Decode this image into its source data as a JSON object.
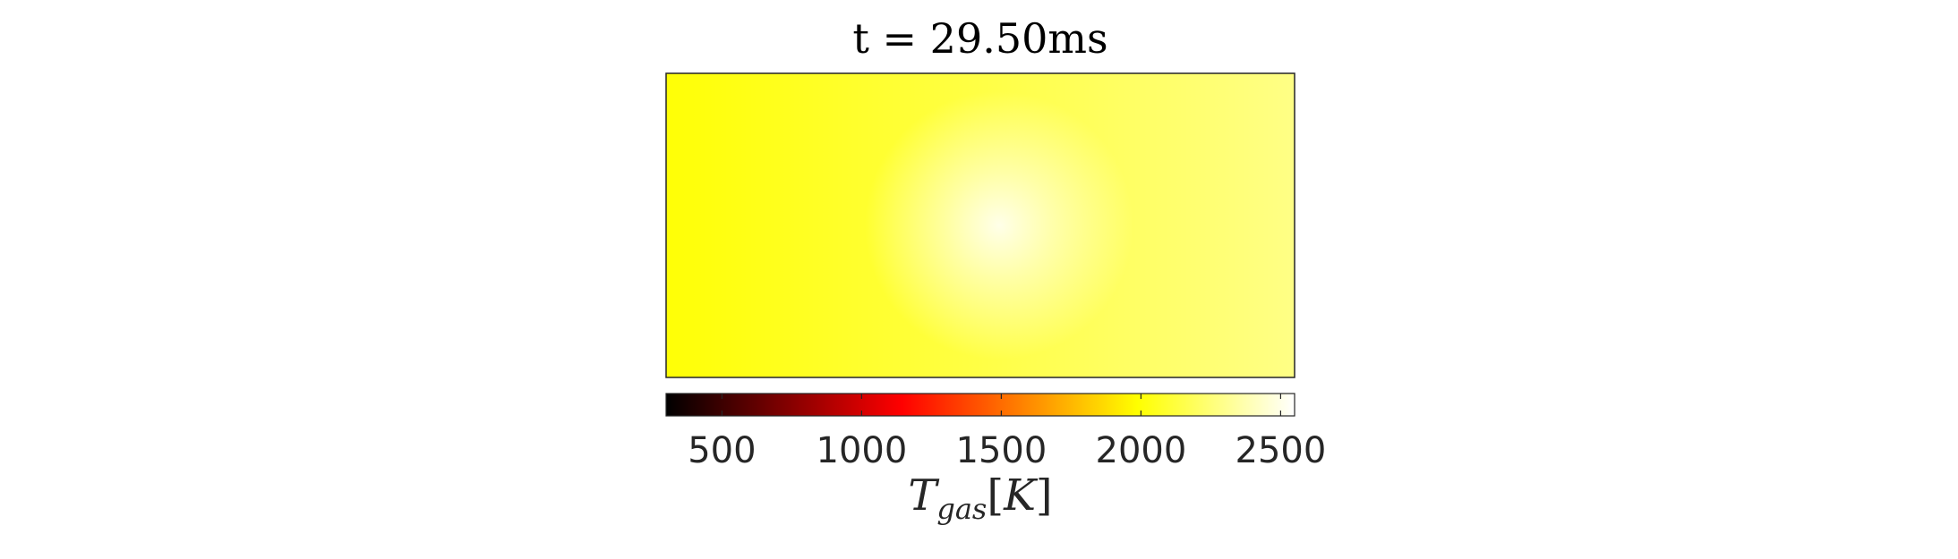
{
  "chart_data": {
    "type": "heatmap",
    "title": "t = 29.50ms",
    "colormap": "hot",
    "colorbar": {
      "orientation": "horizontal",
      "placement": "bottom",
      "range": [
        300,
        2550
      ],
      "ticks": [
        500,
        1000,
        1500,
        2000,
        2500
      ],
      "label": {
        "symbol": "T",
        "subscript": "gas",
        "unit": "K"
      }
    },
    "field": {
      "base_left": 2000,
      "base_right": 2280,
      "hotspot": {
        "x": 0.53,
        "y": 0.5,
        "peak": 2520
      }
    },
    "grid": false
  }
}
